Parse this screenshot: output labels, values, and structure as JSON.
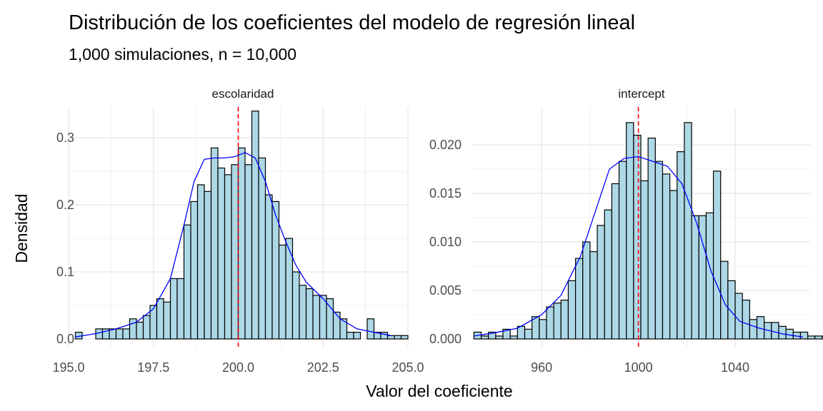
{
  "chart_data": {
    "type": "histogram",
    "title": "Distribución de los coeficientes del modelo de regresión lineal",
    "subtitle": "1,000 simulaciones, n = 10,000",
    "xlabel": "Valor del coeficiente",
    "ylabel": "Densidad",
    "grid": true,
    "colors": {
      "bar_fill": "#add8e6",
      "bar_stroke": "#000000",
      "density_line": "#0000ff",
      "reference_line": "#ff0000",
      "grid": "#ebebeb"
    },
    "panels": [
      {
        "strip_label": "escolaridad",
        "xlim": [
          195.0,
          205.0
        ],
        "ylim": [
          0,
          0.33
        ],
        "x_ticks": [
          "195.0",
          "197.5",
          "200.0",
          "202.5",
          "205.0"
        ],
        "x_tick_values": [
          195.0,
          197.5,
          200.0,
          202.5,
          205.0
        ],
        "y_ticks": [
          "0.0",
          "0.1",
          "0.2",
          "0.3"
        ],
        "y_tick_values": [
          0.0,
          0.1,
          0.2,
          0.3
        ],
        "bin_start": 195.2,
        "bin_width": 0.2,
        "densities": [
          0.01,
          0.0,
          0.0,
          0.015,
          0.015,
          0.015,
          0.015,
          0.015,
          0.03,
          0.025,
          0.035,
          0.05,
          0.06,
          0.055,
          0.09,
          0.09,
          0.17,
          0.205,
          0.23,
          0.22,
          0.285,
          0.255,
          0.245,
          0.26,
          0.285,
          0.26,
          0.34,
          0.27,
          0.215,
          0.205,
          0.14,
          0.15,
          0.1,
          0.08,
          0.075,
          0.065,
          0.065,
          0.06,
          0.04,
          0.03,
          0.01,
          0.01,
          0.0,
          0.03,
          0.01,
          0.01,
          0.005,
          0.005,
          0.005
        ],
        "density_curve": {
          "x": [
            195.2,
            195.8,
            196.4,
            197.0,
            197.5,
            198.0,
            198.4,
            198.7,
            199.0,
            199.3,
            199.6,
            199.9,
            200.2,
            200.5,
            200.8,
            201.1,
            201.4,
            201.7,
            202.0,
            202.5,
            203.0,
            203.5,
            204.0,
            204.5
          ],
          "y": [
            0.003,
            0.008,
            0.015,
            0.025,
            0.045,
            0.09,
            0.17,
            0.235,
            0.268,
            0.27,
            0.27,
            0.272,
            0.278,
            0.27,
            0.235,
            0.185,
            0.145,
            0.11,
            0.085,
            0.06,
            0.03,
            0.015,
            0.01,
            0.005
          ]
        },
        "reference_x": 200.0
      },
      {
        "strip_label": "intercept",
        "xlim": [
          931,
          1071
        ],
        "ylim": [
          0,
          0.0228
        ],
        "x_ticks": [
          "960",
          "1000",
          "1040"
        ],
        "x_tick_values": [
          960,
          1000,
          1040
        ],
        "y_ticks": [
          "0.000",
          "0.005",
          "0.010",
          "0.015",
          "0.020"
        ],
        "y_tick_values": [
          0.0,
          0.005,
          0.01,
          0.015,
          0.02
        ],
        "bin_start": 932,
        "bin_width": 3,
        "densities": [
          0.0007,
          0.0003,
          0.0007,
          0.0003,
          0.001,
          0.0003,
          0.0013,
          0.001,
          0.0023,
          0.002,
          0.0033,
          0.0037,
          0.004,
          0.006,
          0.0083,
          0.01,
          0.009,
          0.0117,
          0.0133,
          0.016,
          0.0183,
          0.0223,
          0.021,
          0.0163,
          0.0207,
          0.0183,
          0.017,
          0.0153,
          0.0193,
          0.0223,
          0.0127,
          0.0127,
          0.013,
          0.0173,
          0.008,
          0.006,
          0.0047,
          0.004,
          0.002,
          0.0023,
          0.0017,
          0.0017,
          0.0013,
          0.001,
          0.0007,
          0.0007,
          0.0003,
          0.0003,
          0.0003,
          0.0003,
          0.0003,
          0.0003,
          0.0003,
          0.0003,
          0.0003,
          0.0003,
          0.0003
        ],
        "density_curve": {
          "x": [
            932,
            940,
            950,
            960,
            968,
            976,
            982,
            988,
            994,
            1000,
            1006,
            1012,
            1018,
            1024,
            1030,
            1036,
            1042,
            1050,
            1060,
            1068
          ],
          "y": [
            0.0003,
            0.0006,
            0.0011,
            0.0025,
            0.0045,
            0.0085,
            0.013,
            0.0175,
            0.0186,
            0.0188,
            0.0183,
            0.0178,
            0.016,
            0.012,
            0.007,
            0.0035,
            0.0018,
            0.0011,
            0.0005,
            0.0002
          ]
        },
        "reference_x": 1000
      }
    ]
  }
}
